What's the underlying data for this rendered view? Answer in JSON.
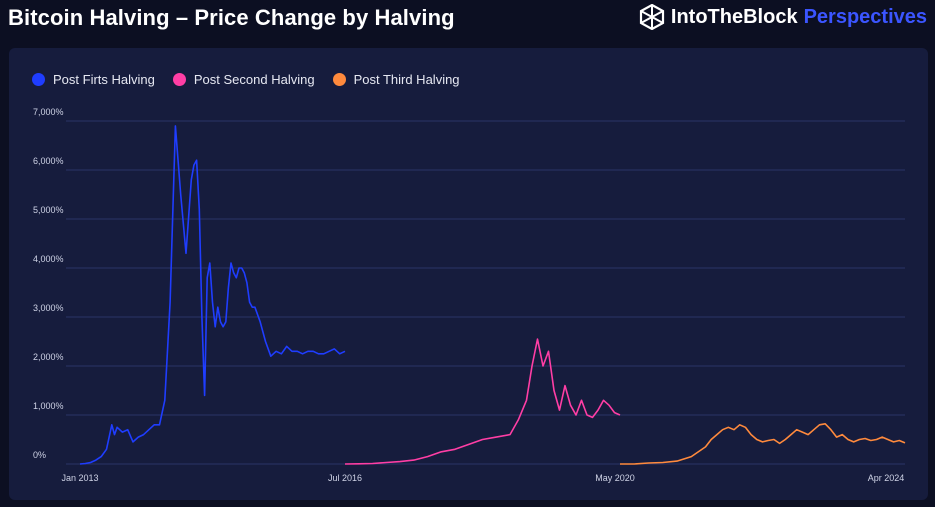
{
  "header": {
    "title": "Bitcoin Halving – Price Change by Halving",
    "brand_name": "IntoTheBlock",
    "brand_product": "Perspectives"
  },
  "chart_data": {
    "type": "line",
    "title": "Bitcoin Halving – Price Change by Halving",
    "xlabel": "",
    "ylabel": "",
    "ylim": [
      0,
      7000
    ],
    "y_ticks": [
      "0%",
      "1,000%",
      "2,000%",
      "3,000%",
      "4,000%",
      "5,000%",
      "6,000%",
      "7,000%"
    ],
    "x_ticks": [
      "Jan 2013",
      "Jul 2016",
      "May 2020",
      "Apr 2024"
    ],
    "grid": true,
    "legend_position": "top-left",
    "series": [
      {
        "name": "Post Firts Halving",
        "color": "#1f3dff",
        "x": [
          0,
          0.02,
          0.04,
          0.06,
          0.08,
          0.1,
          0.12,
          0.13,
          0.14,
          0.16,
          0.18,
          0.2,
          0.22,
          0.24,
          0.26,
          0.28,
          0.3,
          0.32,
          0.34,
          0.36,
          0.38,
          0.4,
          0.42,
          0.43,
          0.44,
          0.45,
          0.46,
          0.47,
          0.48,
          0.49,
          0.5,
          0.51,
          0.52,
          0.53,
          0.54,
          0.55,
          0.56,
          0.57,
          0.58,
          0.59,
          0.6,
          0.61,
          0.62,
          0.63,
          0.64,
          0.65,
          0.66,
          0.68,
          0.7,
          0.72,
          0.74,
          0.76,
          0.78,
          0.8,
          0.82,
          0.84,
          0.86,
          0.88,
          0.9,
          0.92,
          0.94,
          0.96,
          0.98,
          1.0
        ],
        "values": [
          0,
          10,
          30,
          80,
          150,
          300,
          800,
          600,
          750,
          650,
          700,
          450,
          550,
          600,
          700,
          800,
          800,
          1300,
          3300,
          6900,
          5500,
          4300,
          5800,
          6100,
          6200,
          5200,
          3000,
          1400,
          3800,
          4100,
          3300,
          2800,
          3200,
          2900,
          2800,
          2900,
          3600,
          4100,
          3900,
          3800,
          4000,
          4000,
          3900,
          3700,
          3300,
          3200,
          3200,
          2900,
          2500,
          2200,
          2300,
          2250,
          2400,
          2300,
          2300,
          2250,
          2300,
          2300,
          2250,
          2250,
          2300,
          2350,
          2250,
          2300
        ]
      },
      {
        "name": "Post Second Halving",
        "color": "#ff3ea5",
        "x": [
          0,
          0.05,
          0.1,
          0.15,
          0.2,
          0.25,
          0.3,
          0.35,
          0.4,
          0.45,
          0.5,
          0.55,
          0.6,
          0.63,
          0.66,
          0.68,
          0.7,
          0.72,
          0.74,
          0.76,
          0.78,
          0.8,
          0.82,
          0.84,
          0.86,
          0.88,
          0.9,
          0.92,
          0.94,
          0.96,
          0.98,
          1.0
        ],
        "values": [
          0,
          5,
          10,
          30,
          50,
          80,
          150,
          250,
          300,
          400,
          500,
          550,
          600,
          900,
          1300,
          2000,
          2550,
          2000,
          2300,
          1500,
          1100,
          1600,
          1200,
          1000,
          1300,
          1000,
          950,
          1100,
          1300,
          1200,
          1050,
          1000
        ]
      },
      {
        "name": "Post Third Halving",
        "color": "#ff8a3d",
        "x": [
          0,
          0.05,
          0.1,
          0.15,
          0.2,
          0.25,
          0.3,
          0.32,
          0.34,
          0.36,
          0.38,
          0.4,
          0.42,
          0.44,
          0.46,
          0.48,
          0.5,
          0.52,
          0.54,
          0.56,
          0.58,
          0.6,
          0.62,
          0.64,
          0.66,
          0.68,
          0.7,
          0.72,
          0.74,
          0.76,
          0.78,
          0.8,
          0.82,
          0.84,
          0.86,
          0.88,
          0.9,
          0.92,
          0.94,
          0.96,
          0.98,
          1.0
        ],
        "values": [
          0,
          0,
          20,
          30,
          60,
          150,
          350,
          500,
          600,
          700,
          750,
          700,
          800,
          750,
          600,
          500,
          450,
          480,
          500,
          420,
          500,
          600,
          700,
          650,
          600,
          700,
          800,
          820,
          700,
          550,
          600,
          500,
          450,
          500,
          520,
          480,
          500,
          550,
          500,
          450,
          480,
          430
        ]
      }
    ]
  }
}
